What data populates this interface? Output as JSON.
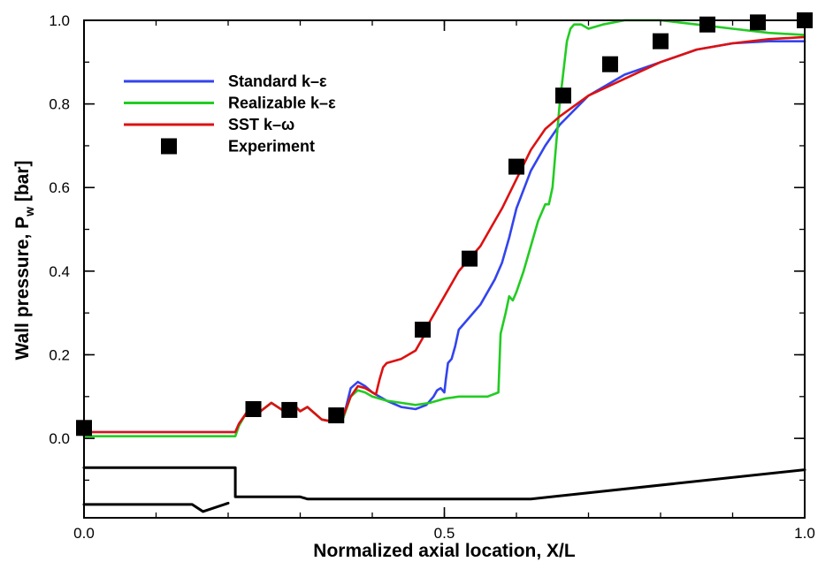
{
  "chart_data": {
    "type": "line",
    "title": "",
    "xlabel": "Normalized axial location, X/L",
    "ylabel": {
      "main": "Wall pressure, P",
      "sub": "w",
      "unit": " [bar]"
    },
    "xlim": [
      0,
      1
    ],
    "ylim": [
      -0.19,
      1.0
    ],
    "x_ticks": [
      {
        "value": 0.0,
        "label": "0.0"
      },
      {
        "value": 0.5,
        "label": "0.5"
      },
      {
        "value": 1.0,
        "label": "1.0"
      }
    ],
    "y_ticks": [
      {
        "value": 0.0,
        "label": "0.0"
      },
      {
        "value": 0.2,
        "label": "0.2"
      },
      {
        "value": 0.4,
        "label": "0.4"
      },
      {
        "value": 0.6,
        "label": "0.6"
      },
      {
        "value": 0.8,
        "label": "0.8"
      },
      {
        "value": 1.0,
        "label": "1.0"
      }
    ],
    "x_minor_step": 0.1,
    "y_minor_step": 0.1,
    "grid": false,
    "legend_position": "top-left",
    "series": [
      {
        "name": "Standard k–ε",
        "color": "#3344ee",
        "kind": "line",
        "x": [
          0,
          0.21,
          0.215,
          0.225,
          0.23,
          0.245,
          0.26,
          0.275,
          0.29,
          0.3,
          0.31,
          0.33,
          0.345,
          0.36,
          0.37,
          0.38,
          0.39,
          0.4,
          0.42,
          0.44,
          0.46,
          0.475,
          0.485,
          0.49,
          0.495,
          0.5,
          0.502,
          0.505,
          0.51,
          0.515,
          0.52,
          0.53,
          0.55,
          0.57,
          0.58,
          0.59,
          0.6,
          0.62,
          0.64,
          0.66,
          0.7,
          0.75,
          0.8,
          0.85,
          0.9,
          0.95,
          1.0
        ],
        "y": [
          0.015,
          0.015,
          0.035,
          0.06,
          0.075,
          0.065,
          0.085,
          0.068,
          0.082,
          0.065,
          0.075,
          0.045,
          0.04,
          0.05,
          0.12,
          0.135,
          0.125,
          0.11,
          0.09,
          0.075,
          0.07,
          0.08,
          0.1,
          0.115,
          0.12,
          0.11,
          0.14,
          0.18,
          0.19,
          0.22,
          0.26,
          0.28,
          0.32,
          0.38,
          0.42,
          0.48,
          0.55,
          0.64,
          0.7,
          0.75,
          0.82,
          0.87,
          0.9,
          0.93,
          0.945,
          0.95,
          0.95
        ]
      },
      {
        "name": "Realizable k–ε",
        "color": "#22cc22",
        "kind": "line",
        "x": [
          0,
          0.21,
          0.215,
          0.225,
          0.23,
          0.245,
          0.26,
          0.275,
          0.29,
          0.3,
          0.31,
          0.33,
          0.345,
          0.36,
          0.37,
          0.38,
          0.39,
          0.4,
          0.42,
          0.44,
          0.46,
          0.48,
          0.5,
          0.52,
          0.54,
          0.56,
          0.575,
          0.578,
          0.585,
          0.59,
          0.595,
          0.6,
          0.61,
          0.62,
          0.63,
          0.64,
          0.645,
          0.65,
          0.655,
          0.66,
          0.67,
          0.675,
          0.68,
          0.69,
          0.7,
          0.72,
          0.75,
          0.8,
          0.85,
          0.9,
          0.95,
          1.0
        ],
        "y": [
          0.005,
          0.005,
          0.03,
          0.06,
          0.075,
          0.065,
          0.085,
          0.068,
          0.082,
          0.065,
          0.075,
          0.045,
          0.04,
          0.05,
          0.1,
          0.115,
          0.11,
          0.1,
          0.09,
          0.085,
          0.08,
          0.085,
          0.095,
          0.1,
          0.1,
          0.1,
          0.11,
          0.25,
          0.3,
          0.34,
          0.33,
          0.35,
          0.4,
          0.46,
          0.52,
          0.56,
          0.56,
          0.6,
          0.7,
          0.8,
          0.95,
          0.98,
          0.99,
          0.99,
          0.98,
          0.99,
          1.0,
          1.0,
          0.99,
          0.98,
          0.97,
          0.965
        ]
      },
      {
        "name": "SST k–ω",
        "color": "#dd1111",
        "kind": "line",
        "x": [
          0,
          0.21,
          0.215,
          0.225,
          0.23,
          0.245,
          0.26,
          0.275,
          0.29,
          0.3,
          0.31,
          0.33,
          0.345,
          0.36,
          0.37,
          0.38,
          0.39,
          0.405,
          0.41,
          0.415,
          0.42,
          0.44,
          0.46,
          0.47,
          0.48,
          0.5,
          0.52,
          0.55,
          0.57,
          0.58,
          0.6,
          0.62,
          0.64,
          0.66,
          0.7,
          0.75,
          0.8,
          0.85,
          0.9,
          0.95,
          1.0
        ],
        "y": [
          0.015,
          0.015,
          0.035,
          0.06,
          0.075,
          0.065,
          0.085,
          0.068,
          0.082,
          0.065,
          0.075,
          0.045,
          0.04,
          0.055,
          0.1,
          0.125,
          0.12,
          0.105,
          0.14,
          0.17,
          0.18,
          0.19,
          0.21,
          0.24,
          0.28,
          0.34,
          0.4,
          0.46,
          0.52,
          0.55,
          0.62,
          0.69,
          0.74,
          0.77,
          0.82,
          0.86,
          0.9,
          0.93,
          0.945,
          0.955,
          0.96
        ]
      },
      {
        "name": "Experiment",
        "color": "#000000",
        "kind": "marker",
        "x": [
          0.0,
          0.235,
          0.285,
          0.35,
          0.47,
          0.535,
          0.6,
          0.665,
          0.73,
          0.8,
          0.865,
          0.935,
          1.0
        ],
        "y": [
          0.025,
          0.07,
          0.068,
          0.055,
          0.26,
          0.43,
          0.65,
          0.82,
          0.895,
          0.95,
          0.99,
          0.995,
          1.0
        ]
      },
      {
        "name": "",
        "color": "#000000",
        "kind": "geometry",
        "x": [
          0,
          0.21,
          0.21,
          0.3,
          0.31,
          0.62,
          1.0
        ],
        "y": [
          -0.07,
          -0.07,
          -0.14,
          -0.14,
          -0.145,
          -0.145,
          -0.075
        ]
      },
      {
        "name": "",
        "color": "#000000",
        "kind": "geometry",
        "x": [
          0,
          0.15,
          0.165,
          0.2
        ],
        "y": [
          -0.158,
          -0.158,
          -0.175,
          -0.155
        ]
      }
    ]
  }
}
